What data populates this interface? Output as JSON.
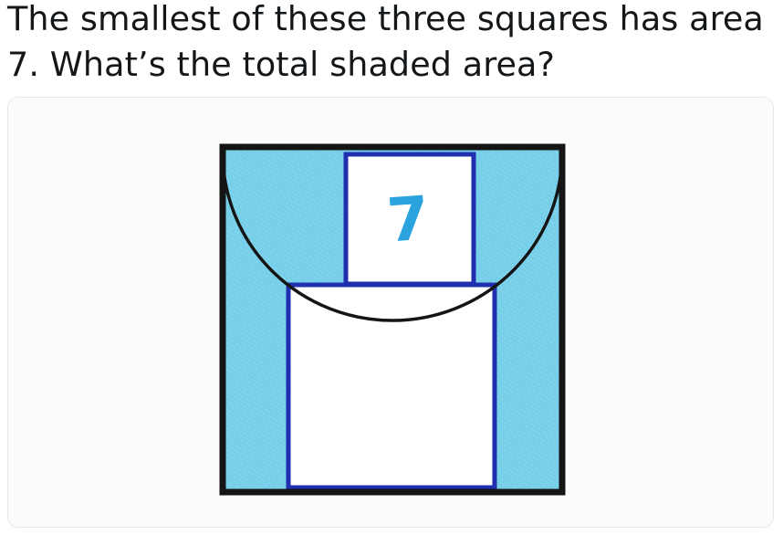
{
  "tweet": {
    "text_line1": "The smallest of these three squares has area",
    "text_line2": "7. What’s the total shaded area?"
  },
  "figure": {
    "small_square_label": "7",
    "colors": {
      "shading": "#7fd2ea",
      "shading_dark": "#5ec4e3",
      "outer_square_stroke": "#151515",
      "inner_square_stroke": "#1f2fb0",
      "semicircle_stroke": "#151515",
      "label": "#2aa3df",
      "paper": "#fbfbfb"
    }
  }
}
